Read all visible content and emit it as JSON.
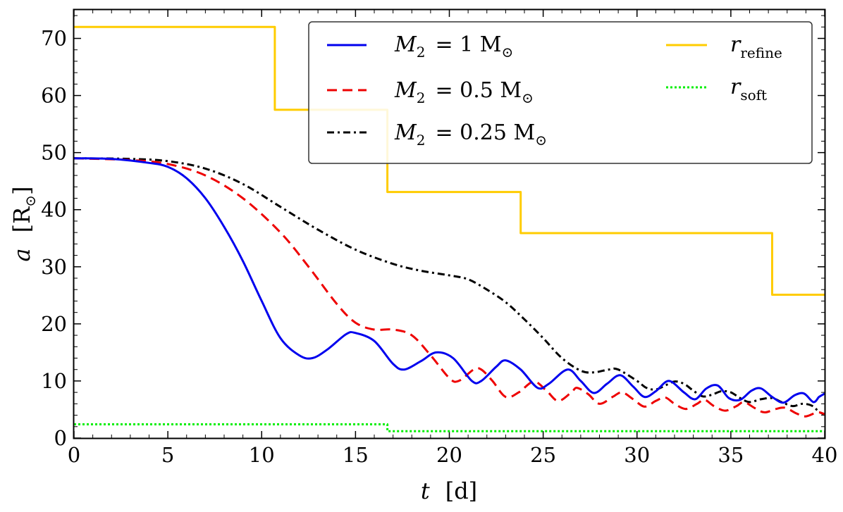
{
  "chart_data": {
    "type": "line",
    "xlabel": "t",
    "xunit": "[d]",
    "ylabel": "a",
    "yunit_open": "[R",
    "yunit_sub": "⊙",
    "yunit_close": "]",
    "xlim": [
      0,
      40
    ],
    "ylim": [
      0,
      75
    ],
    "xticks": [
      "0",
      "5",
      "10",
      "15",
      "20",
      "25",
      "30",
      "35",
      "40"
    ],
    "yticks": [
      "0",
      "10",
      "20",
      "30",
      "40",
      "50",
      "60",
      "70"
    ],
    "legend_position": "top-right",
    "series": [
      {
        "name": "M2 = 1 M⊙",
        "legend_var": "M",
        "legend_sub": "2",
        "legend_rest": "= 1 M",
        "legend_sun": "⊙",
        "color": "#0000ee",
        "style": "solid",
        "points": [
          [
            0,
            49
          ],
          [
            2,
            48.9
          ],
          [
            4,
            48.2
          ],
          [
            5,
            47.5
          ],
          [
            6,
            45.5
          ],
          [
            7,
            42
          ],
          [
            8,
            37
          ],
          [
            9,
            31
          ],
          [
            10,
            24
          ],
          [
            11,
            17.5
          ],
          [
            12,
            14.5
          ],
          [
            12.7,
            14
          ],
          [
            13.5,
            15.5
          ],
          [
            14.5,
            18.2
          ],
          [
            15,
            18.4
          ],
          [
            16,
            17
          ],
          [
            17,
            13
          ],
          [
            17.6,
            12
          ],
          [
            18.5,
            13.5
          ],
          [
            19.3,
            15
          ],
          [
            20.2,
            14
          ],
          [
            21.2,
            10
          ],
          [
            21.7,
            10
          ],
          [
            22.5,
            12.5
          ],
          [
            23,
            13.6
          ],
          [
            23.8,
            12
          ],
          [
            24.7,
            8.8
          ],
          [
            25.3,
            9.5
          ],
          [
            26.3,
            12
          ],
          [
            27,
            10
          ],
          [
            27.7,
            7.9
          ],
          [
            28.4,
            9.5
          ],
          [
            29.1,
            11
          ],
          [
            29.8,
            9
          ],
          [
            30.4,
            7.2
          ],
          [
            31,
            8.2
          ],
          [
            31.7,
            10
          ],
          [
            32.5,
            8
          ],
          [
            33.1,
            6.8
          ],
          [
            33.7,
            8.7
          ],
          [
            34.3,
            9.2
          ],
          [
            34.9,
            7
          ],
          [
            35.5,
            6.7
          ],
          [
            36.1,
            8.3
          ],
          [
            36.6,
            8.7
          ],
          [
            37.2,
            7.2
          ],
          [
            37.8,
            6.2
          ],
          [
            38.4,
            7.5
          ],
          [
            38.9,
            7.8
          ],
          [
            39.4,
            6.3
          ],
          [
            39.7,
            7.2
          ],
          [
            40,
            7.8
          ]
        ]
      },
      {
        "name": "M2 = 0.5 M⊙",
        "legend_var": "M",
        "legend_sub": "2",
        "legend_rest": "= 0.5 M",
        "legend_sun": "⊙",
        "color": "#ee0000",
        "style": "dashed",
        "points": [
          [
            0,
            49
          ],
          [
            3,
            48.7
          ],
          [
            5,
            48
          ],
          [
            7,
            46
          ],
          [
            9,
            42
          ],
          [
            11,
            36
          ],
          [
            12.5,
            30
          ],
          [
            14,
            23.5
          ],
          [
            15,
            20.2
          ],
          [
            16,
            19
          ],
          [
            17,
            19
          ],
          [
            18,
            18
          ],
          [
            19,
            14.5
          ],
          [
            20,
            10.5
          ],
          [
            20.5,
            10
          ],
          [
            21.3,
            12
          ],
          [
            21.7,
            12
          ],
          [
            22.3,
            10
          ],
          [
            23,
            7.2
          ],
          [
            23.7,
            8
          ],
          [
            24.5,
            9.9
          ],
          [
            25.2,
            8.2
          ],
          [
            25.8,
            6.5
          ],
          [
            26.5,
            8
          ],
          [
            26.8,
            8.8
          ],
          [
            27.4,
            7.7
          ],
          [
            28,
            6
          ],
          [
            28.7,
            7.2
          ],
          [
            29.2,
            8
          ],
          [
            29.8,
            6.8
          ],
          [
            30.4,
            5.5
          ],
          [
            31,
            6.5
          ],
          [
            31.5,
            7.1
          ],
          [
            32,
            6
          ],
          [
            32.6,
            5.1
          ],
          [
            33.2,
            6
          ],
          [
            33.6,
            6.7
          ],
          [
            34.1,
            5.6
          ],
          [
            34.7,
            4.8
          ],
          [
            35.3,
            5.6
          ],
          [
            35.7,
            6.3
          ],
          [
            36.3,
            5.2
          ],
          [
            36.8,
            4.5
          ],
          [
            37.4,
            5.1
          ],
          [
            37.9,
            5.3
          ],
          [
            38.5,
            4.3
          ],
          [
            39,
            3.8
          ],
          [
            39.6,
            4.5
          ],
          [
            40,
            4.2
          ]
        ]
      },
      {
        "name": "M2 = 0.25 M⊙",
        "legend_var": "M",
        "legend_sub": "2",
        "legend_rest": "= 0.25 M",
        "legend_sun": "⊙",
        "color": "#000000",
        "style": "dashdot",
        "points": [
          [
            0,
            49
          ],
          [
            3,
            48.9
          ],
          [
            5,
            48.5
          ],
          [
            7,
            47.2
          ],
          [
            9,
            44.5
          ],
          [
            11,
            40.5
          ],
          [
            13,
            36.5
          ],
          [
            15,
            33
          ],
          [
            17,
            30.5
          ],
          [
            18.5,
            29.3
          ],
          [
            20,
            28.5
          ],
          [
            21,
            27.8
          ],
          [
            22,
            26
          ],
          [
            23,
            23.8
          ],
          [
            24,
            20.8
          ],
          [
            25,
            17.5
          ],
          [
            26,
            14
          ],
          [
            27,
            11.8
          ],
          [
            27.7,
            11.5
          ],
          [
            28.5,
            12
          ],
          [
            29,
            12
          ],
          [
            30,
            10
          ],
          [
            30.5,
            8.8
          ],
          [
            31,
            8.5
          ],
          [
            31.5,
            9.2
          ],
          [
            32,
            9.9
          ],
          [
            32.5,
            9.5
          ],
          [
            33,
            8.3
          ],
          [
            33.5,
            7.3
          ],
          [
            34,
            7.6
          ],
          [
            34.5,
            8.2
          ],
          [
            35,
            8
          ],
          [
            35.5,
            7
          ],
          [
            36,
            6.3
          ],
          [
            36.6,
            6.8
          ],
          [
            37.2,
            7
          ],
          [
            37.7,
            6.3
          ],
          [
            38.3,
            5.6
          ],
          [
            38.8,
            6
          ],
          [
            39.3,
            5.7
          ],
          [
            39.7,
            4.6
          ],
          [
            40,
            4.1
          ]
        ]
      },
      {
        "name": "r_refine",
        "legend_var": "r",
        "legend_sub": "refine",
        "color": "#ffcc00",
        "style": "solid",
        "points": [
          [
            0,
            72
          ],
          [
            10.7,
            72
          ],
          [
            10.7,
            57.5
          ],
          [
            16.7,
            57.5
          ],
          [
            16.7,
            43.1
          ],
          [
            23.8,
            43.1
          ],
          [
            23.8,
            35.9
          ],
          [
            37.2,
            35.9
          ],
          [
            37.2,
            25.1
          ],
          [
            40,
            25.1
          ]
        ]
      },
      {
        "name": "r_soft",
        "legend_var": "r",
        "legend_sub": "soft",
        "color": "#00ee00",
        "style": "dotted",
        "points": [
          [
            0,
            2.4
          ],
          [
            16.7,
            2.4
          ],
          [
            16.7,
            1.2
          ],
          [
            40,
            1.2
          ]
        ]
      }
    ]
  }
}
